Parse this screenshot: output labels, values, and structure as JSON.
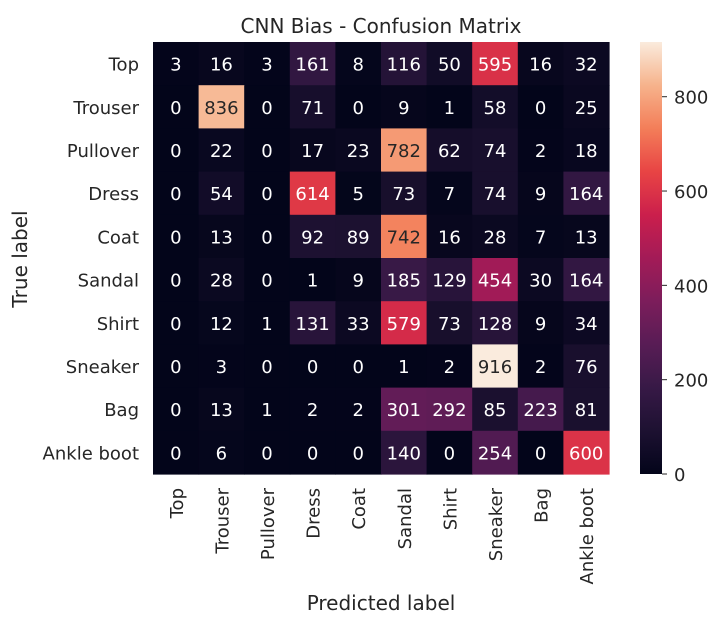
{
  "chart_data": {
    "type": "heatmap",
    "title": "CNN Bias - Confusion Matrix",
    "xlabel": "Predicted label",
    "ylabel": "True label",
    "x_categories": [
      "Top",
      "Trouser",
      "Pullover",
      "Dress",
      "Coat",
      "Sandal",
      "Shirt",
      "Sneaker",
      "Bag",
      "Ankle boot"
    ],
    "y_categories": [
      "Top",
      "Trouser",
      "Pullover",
      "Dress",
      "Coat",
      "Sandal",
      "Shirt",
      "Sneaker",
      "Bag",
      "Ankle boot"
    ],
    "values": [
      [
        3,
        16,
        3,
        161,
        8,
        116,
        50,
        595,
        16,
        32
      ],
      [
        0,
        836,
        0,
        71,
        0,
        9,
        1,
        58,
        0,
        25
      ],
      [
        0,
        22,
        0,
        17,
        23,
        782,
        62,
        74,
        2,
        18
      ],
      [
        0,
        54,
        0,
        614,
        5,
        73,
        7,
        74,
        9,
        164
      ],
      [
        0,
        13,
        0,
        92,
        89,
        742,
        16,
        28,
        7,
        13
      ],
      [
        0,
        28,
        0,
        1,
        9,
        185,
        129,
        454,
        30,
        164
      ],
      [
        0,
        12,
        1,
        131,
        33,
        579,
        73,
        128,
        9,
        34
      ],
      [
        0,
        3,
        0,
        0,
        0,
        1,
        2,
        916,
        2,
        76
      ],
      [
        0,
        13,
        1,
        2,
        2,
        301,
        292,
        85,
        223,
        81
      ],
      [
        0,
        6,
        0,
        0,
        0,
        140,
        0,
        254,
        0,
        600
      ]
    ],
    "colormap": "rocket",
    "vmin": 0,
    "vmax": 916,
    "colorbar_ticks": [
      0,
      200,
      400,
      600,
      800
    ],
    "annotations_shown": true,
    "grid": false
  }
}
